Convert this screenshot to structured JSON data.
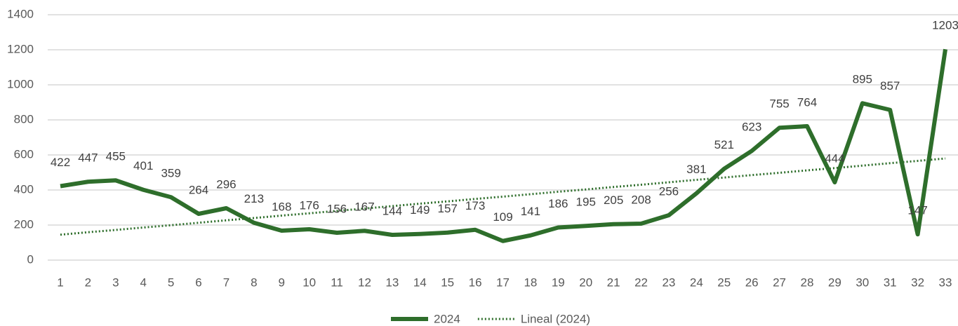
{
  "chart_data": {
    "type": "line",
    "categories": [
      "1",
      "2",
      "3",
      "4",
      "5",
      "6",
      "7",
      "8",
      "9",
      "10",
      "11",
      "12",
      "13",
      "14",
      "15",
      "16",
      "17",
      "18",
      "19",
      "20",
      "21",
      "22",
      "23",
      "24",
      "25",
      "26",
      "27",
      "28",
      "29",
      "30",
      "31",
      "32",
      "33"
    ],
    "series": [
      {
        "name": "2024",
        "color": "#2e6e2b",
        "style": "solid",
        "data_labels": true,
        "values": [
          422,
          447,
          455,
          401,
          359,
          264,
          296,
          213,
          168,
          176,
          156,
          167,
          144,
          149,
          157,
          173,
          109,
          141,
          186,
          195,
          205,
          208,
          256,
          381,
          521,
          623,
          755,
          764,
          444,
          895,
          857,
          147,
          1203
        ]
      },
      {
        "name": "Lineal (2024)",
        "color": "#2e6e2b",
        "style": "dotted",
        "data_labels": false,
        "values": [
          145,
          159,
          172,
          186,
          199,
          213,
          227,
          240,
          254,
          267,
          281,
          294,
          308,
          322,
          335,
          349,
          362,
          376,
          390,
          403,
          417,
          430,
          444,
          458,
          471,
          485,
          498,
          512,
          525,
          539,
          553,
          566,
          580
        ]
      }
    ],
    "ylim": [
      0,
      1400
    ],
    "yticks": [
      0,
      200,
      400,
      600,
      800,
      1000,
      1200,
      1400
    ],
    "grid": true,
    "legend": "bottom"
  }
}
